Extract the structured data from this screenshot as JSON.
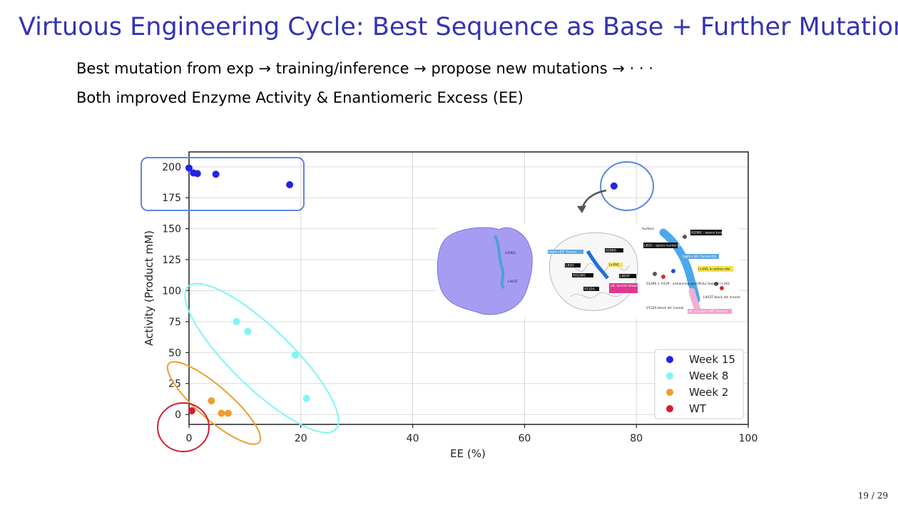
{
  "slide": {
    "title": "Virtuous Engineering Cycle: Best Sequence as Base + Further Mutations",
    "bullets": [
      "Best mutation from exp → training/inference → propose new mutations → · · ·",
      "Both improved Enzyme Activity & Enantiomeric Excess (EE)"
    ],
    "page_number": "19 / 29"
  },
  "chart_data": {
    "type": "scatter",
    "xlabel": "EE (%)",
    "ylabel": "Activity (Product mM)",
    "xlim": [
      0,
      100
    ],
    "ylim": [
      -8,
      212
    ],
    "xticks": [
      0,
      20,
      40,
      60,
      80,
      100
    ],
    "yticks": [
      0,
      25,
      50,
      75,
      100,
      125,
      150,
      175,
      200
    ],
    "grid": true,
    "legend_position": "lower-right",
    "series": [
      {
        "name": "Week 15",
        "color": "#2323e6",
        "x": [
          0,
          0.8,
          1.5,
          4.8,
          18.0,
          76.0
        ],
        "y": [
          199,
          195,
          194.5,
          194,
          185.5,
          184.5
        ]
      },
      {
        "name": "Week 8",
        "color": "#7ff5f5",
        "x": [
          8.5,
          10.5,
          19.0,
          21.0
        ],
        "y": [
          75,
          67,
          48,
          13
        ]
      },
      {
        "name": "Week 2",
        "color": "#ee9d30",
        "x": [
          4.0,
          5.8,
          7.0
        ],
        "y": [
          11,
          1,
          1
        ]
      },
      {
        "name": "WT",
        "color": "#d51c30",
        "x": [
          0.5
        ],
        "y": [
          3
        ]
      }
    ],
    "annotations": {
      "inset_labels_dark": [
        "A206G",
        "L82G",
        "AS128G",
        "(+)IVL",
        "L403T",
        "V152A"
      ],
      "inset_labels_light": [
        "A206G",
        "L403T"
      ],
      "inset_callout_labels": [
        "high(+)EE Tunnel",
        "alt. tunnel shown in WT"
      ],
      "inset_right_labels": [
        "Surface",
        "A206G : opens tunnel mouth",
        "L82G : opens tunnel mouth",
        "high(+)EE Tunnel (O)",
        "(+)IVL in active site",
        "S128S + A129 : enhancing specificity toward (+)IVL",
        "L403T block alt. tunnel",
        "V152A block alt. tunnel",
        "alt. tunnel (=WT Tunnel)"
      ]
    }
  }
}
